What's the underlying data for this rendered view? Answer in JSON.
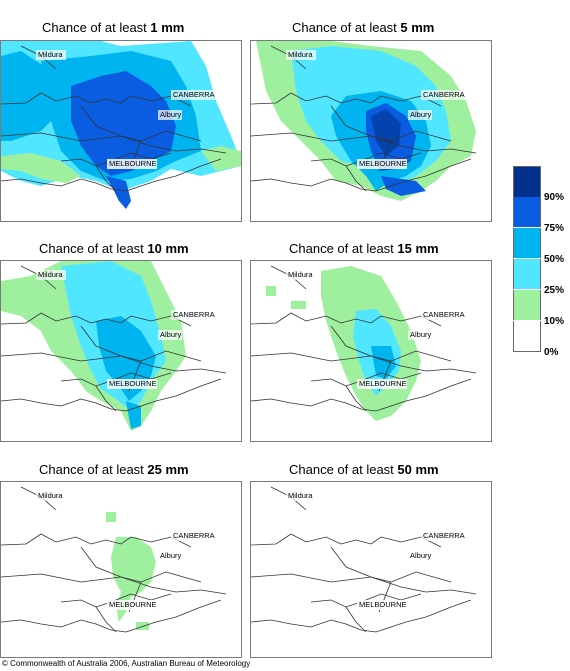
{
  "panels": [
    {
      "title_prefix": "Chance of at least ",
      "amount": "1 mm"
    },
    {
      "title_prefix": "Chance of at least ",
      "amount": "5 mm"
    },
    {
      "title_prefix": "Chance of at least ",
      "amount": "10 mm"
    },
    {
      "title_prefix": "Chance of at least ",
      "amount": "15 mm"
    },
    {
      "title_prefix": "Chance of at least ",
      "amount": "25 mm"
    },
    {
      "title_prefix": "Chance of at least ",
      "amount": "50 mm"
    }
  ],
  "cities": {
    "mildura": "Mildura",
    "canberra": "CANBERRA",
    "albury": "Albury",
    "melbourne": "MELBOURNE"
  },
  "legend": {
    "labels": [
      "90%",
      "75%",
      "50%",
      "25%",
      "10%",
      "0%"
    ],
    "colors": [
      "#00308c",
      "#0a5de0",
      "#00b4f0",
      "#50e6ff",
      "#9ef09e",
      "#ffffff"
    ]
  },
  "copyright": "© Commonwealth of Australia 2006, Australian Bureau of Meteorology"
}
